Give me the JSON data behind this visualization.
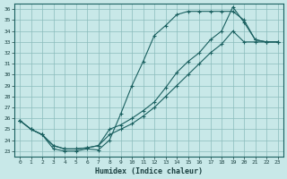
{
  "xlabel": "Humidex (Indice chaleur)",
  "background_color": "#c8e8e8",
  "grid_color": "#8bbcbc",
  "line_color": "#1a6060",
  "xlim": [
    -0.5,
    23.5
  ],
  "ylim": [
    22.5,
    36.5
  ],
  "xticks": [
    0,
    1,
    2,
    3,
    4,
    5,
    6,
    7,
    8,
    9,
    10,
    11,
    12,
    13,
    14,
    15,
    16,
    17,
    18,
    19,
    20,
    21,
    22,
    23
  ],
  "yticks": [
    23,
    24,
    25,
    26,
    27,
    28,
    29,
    30,
    31,
    32,
    33,
    34,
    35,
    36
  ],
  "curve1_x": [
    0,
    1,
    2,
    3,
    4,
    5,
    6,
    7,
    8,
    9,
    10,
    11,
    12,
    13,
    14,
    15,
    16,
    17,
    18,
    19,
    20,
    21,
    22,
    23
  ],
  "curve1_y": [
    25.8,
    25.0,
    24.5,
    23.2,
    23.0,
    23.0,
    23.2,
    23.1,
    24.0,
    26.4,
    29.0,
    31.2,
    33.6,
    34.5,
    35.5,
    35.8,
    35.8,
    35.8,
    35.8,
    35.8,
    35.0,
    33.2,
    33.0,
    33.0
  ],
  "curve2_x": [
    0,
    1,
    2,
    3,
    4,
    5,
    6,
    7,
    8,
    9,
    10,
    11,
    12,
    13,
    14,
    15,
    16,
    17,
    18,
    19,
    20,
    21,
    22,
    23
  ],
  "curve2_y": [
    25.8,
    25.0,
    24.5,
    23.5,
    23.2,
    23.2,
    23.3,
    23.5,
    25.0,
    25.4,
    26.0,
    26.7,
    27.5,
    28.8,
    30.2,
    31.2,
    32.0,
    33.2,
    34.0,
    36.2,
    34.8,
    33.2,
    33.0,
    33.0
  ],
  "curve3_x": [
    0,
    1,
    2,
    3,
    4,
    5,
    6,
    7,
    8,
    9,
    10,
    11,
    12,
    13,
    14,
    15,
    16,
    17,
    18,
    19,
    20,
    21,
    22,
    23
  ],
  "curve3_y": [
    25.8,
    25.0,
    24.5,
    23.5,
    23.2,
    23.2,
    23.3,
    23.5,
    24.5,
    25.0,
    25.5,
    26.2,
    27.0,
    28.0,
    29.0,
    30.0,
    31.0,
    32.0,
    32.8,
    34.0,
    33.0,
    33.0,
    33.0,
    33.0
  ]
}
